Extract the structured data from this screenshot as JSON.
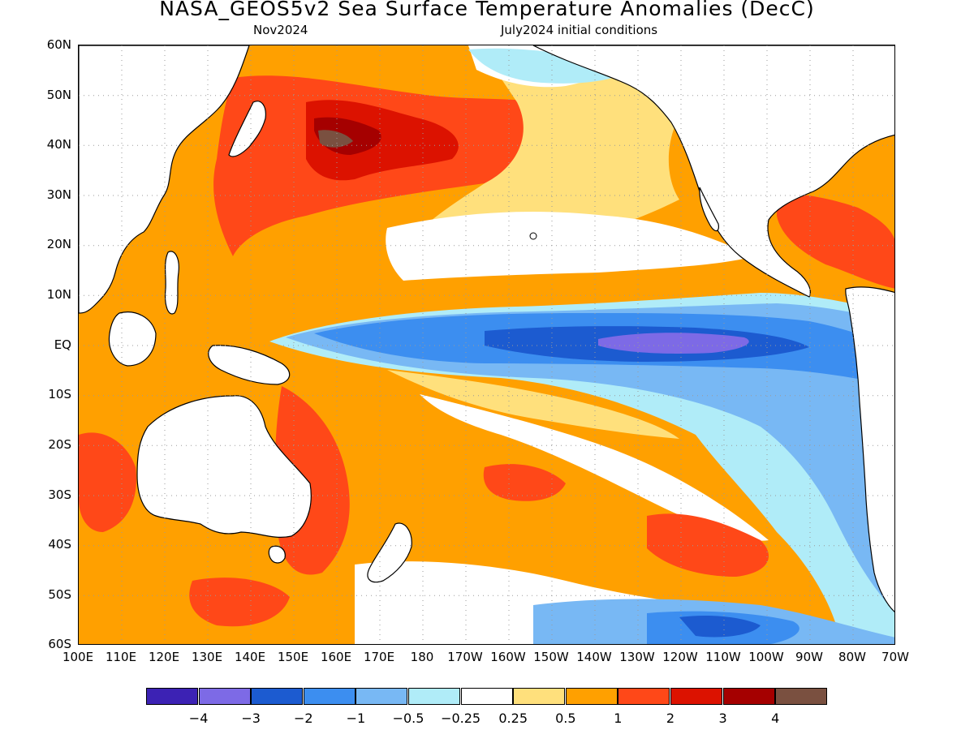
{
  "header": {
    "title": "NASA_GEOS5v2 Sea Surface Temperature Anomalies (DecC)",
    "forecast_month": "Nov2024",
    "initial_conditions": "July2024 initial conditions"
  },
  "axes": {
    "lat_labels": [
      "60N",
      "50N",
      "40N",
      "30N",
      "20N",
      "10N",
      "EQ",
      "10S",
      "20S",
      "30S",
      "40S",
      "50S",
      "60S"
    ],
    "lon_labels": [
      "100E",
      "110E",
      "120E",
      "130E",
      "140E",
      "150E",
      "160E",
      "170E",
      "180",
      "170W",
      "160W",
      "150W",
      "140W",
      "130W",
      "120W",
      "110W",
      "100W",
      "90W",
      "80W",
      "70W"
    ]
  },
  "legend": {
    "colors": [
      "#3c22b4",
      "#7d6ae6",
      "#1c5bd0",
      "#3c8ef0",
      "#78b8f4",
      "#b0ecf8",
      "#ffffff",
      "#ffe07c",
      "#ffa000",
      "#ff4818",
      "#dc1200",
      "#a50000",
      "#7a5040"
    ],
    "tick_labels": [
      "−4",
      "−3",
      "−2",
      "−1",
      "−0.5",
      "−0.25",
      "0.25",
      "0.5",
      "1",
      "2",
      "3",
      "4"
    ]
  },
  "map": {
    "colors": {
      "ocean_warm": "#ffa000",
      "ocean_hot": "#ff4818",
      "ocean_very_hot": "#dc1200",
      "ocean_extreme": "#a50000",
      "ocean_max": "#7a5040",
      "slight_warm": "#ffe07c",
      "neutral": "#ffffff",
      "slight_cool": "#b0ecf8",
      "cool": "#78b8f4",
      "cooler": "#3c8ef0",
      "cold": "#1c5bd0",
      "coldest": "#7d6ae6",
      "land": "#ffffff",
      "coast": "#000000",
      "grid": "#9a9a9a"
    }
  }
}
